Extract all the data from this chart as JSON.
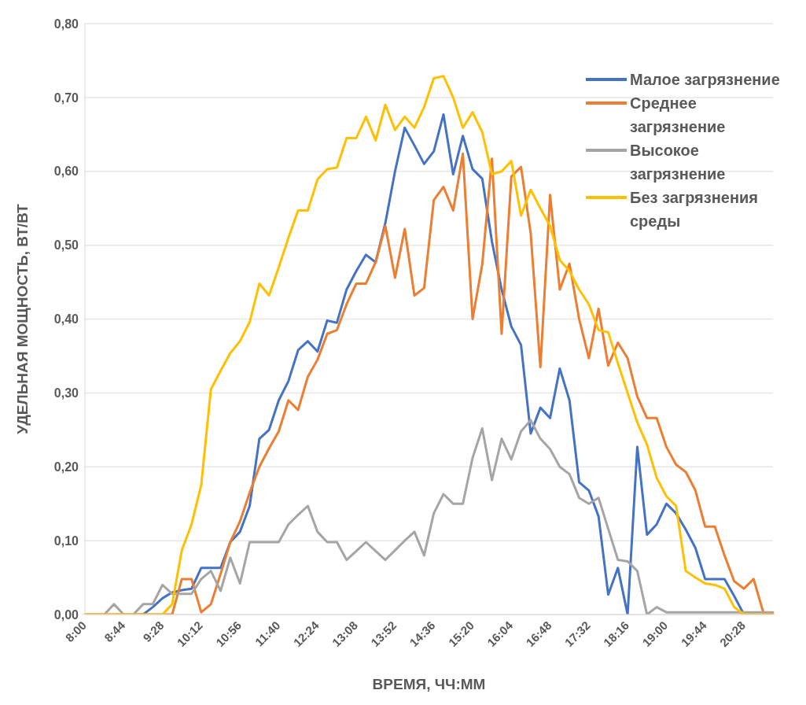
{
  "chart_data": {
    "type": "line",
    "xlabel": "ВРЕМЯ, ЧЧ:ММ",
    "ylabel": "УДЕЛЬНАЯ МОЩНОСТЬ, ВТ/ВТ",
    "categories": [
      "8:00",
      null,
      null,
      null,
      "8:44",
      null,
      null,
      null,
      "9:28",
      null,
      null,
      null,
      "10:12",
      null,
      null,
      null,
      "10:56",
      null,
      null,
      null,
      "11:40",
      null,
      null,
      null,
      "12:24",
      null,
      null,
      null,
      "13:08",
      null,
      null,
      null,
      "13:52",
      null,
      null,
      null,
      "14:36",
      null,
      null,
      null,
      "15:20",
      null,
      null,
      null,
      "16:04",
      null,
      null,
      null,
      "16:48",
      null,
      null,
      null,
      "17:32",
      null,
      null,
      null,
      "18:16",
      null,
      null,
      null,
      "19:00",
      null,
      null,
      null,
      "19:44",
      null,
      null,
      null,
      "20:28",
      null,
      null,
      null
    ],
    "series": [
      {
        "name": "Малое загрязнение",
        "color": "#4472c4",
        "values": [
          null,
          null,
          null,
          null,
          null,
          0,
          0,
          0.01,
          0.022,
          0.03,
          0.033,
          0.035,
          0.063,
          0.063,
          0.063,
          0.098,
          0.112,
          0.147,
          0.238,
          0.25,
          0.29,
          0.316,
          0.358,
          0.37,
          0.356,
          0.398,
          0.395,
          0.44,
          0.465,
          0.487,
          0.477,
          0.53,
          0.6,
          0.659,
          0.635,
          0.61,
          0.627,
          0.677,
          0.596,
          0.648,
          0.603,
          0.59,
          0.505,
          0.44,
          0.39,
          0.365,
          0.245,
          0.28,
          0.266,
          0.333,
          0.29,
          0.179,
          0.168,
          0.133,
          0.027,
          0.063,
          0,
          0.227,
          0.108,
          0.122,
          0.15,
          0.137,
          0.115,
          0.09,
          0.048,
          0.048,
          0.048,
          0.025,
          0,
          0,
          null,
          null
        ]
      },
      {
        "name": "Среднее загрязнение",
        "color": "#ed7d31",
        "values": [
          0,
          0,
          0,
          0,
          0,
          0,
          0,
          0,
          0,
          0,
          0.048,
          0.048,
          0.003,
          0.014,
          0.055,
          0.098,
          0.126,
          0.165,
          0.2,
          0.225,
          0.248,
          0.29,
          0.277,
          0.322,
          0.345,
          0.38,
          0.385,
          0.42,
          0.448,
          0.448,
          0.477,
          0.526,
          0.456,
          0.522,
          0.432,
          0.442,
          0.561,
          0.579,
          0.547,
          0.624,
          0.4,
          0.474,
          0.617,
          0.38,
          0.593,
          0.606,
          0.516,
          0.335,
          0.568,
          0.44,
          0.475,
          0.4,
          0.347,
          0.414,
          0.337,
          0.368,
          0.347,
          0.295,
          0.266,
          0.266,
          0.227,
          0.203,
          0.193,
          0.168,
          0.119,
          0.119,
          0.08,
          0.045,
          0.035,
          0.048,
          0.003,
          0
        ]
      },
      {
        "name": "Высокое загрязнение",
        "color": "#a5a5a5",
        "values": [
          0,
          0,
          0,
          0.014,
          0,
          0,
          0.014,
          0.014,
          0.04,
          0.028,
          0.028,
          0.028,
          0.048,
          0.059,
          0.032,
          0.077,
          0.042,
          0.098,
          0.098,
          0.098,
          0.098,
          0.122,
          0.135,
          0.147,
          0.112,
          0.098,
          0.098,
          0.074,
          0.086,
          0.098,
          0.086,
          0.074,
          0.087,
          0.1,
          0.112,
          0.08,
          0.137,
          0.163,
          0.15,
          0.15,
          0.212,
          0.252,
          0.182,
          0.238,
          0.21,
          0.248,
          0.263,
          0.238,
          0.224,
          0.2,
          0.19,
          0.158,
          0.15,
          0.158,
          0.116,
          0.074,
          0.072,
          0.059,
          0,
          0.01,
          0.003,
          0.003,
          0.003,
          0.003,
          0.003,
          0.003,
          0.003,
          0.003,
          0.003,
          0.003,
          0.003,
          0.003
        ]
      },
      {
        "name": "Без загрязнения среды",
        "color": "#ffc000",
        "values": [
          0,
          0,
          0,
          0,
          0,
          0,
          0,
          0,
          0,
          0.014,
          0.087,
          0.122,
          0.175,
          0.305,
          0.33,
          0.354,
          0.37,
          0.396,
          0.448,
          0.432,
          0.47,
          0.51,
          0.547,
          0.547,
          0.589,
          0.603,
          0.605,
          0.645,
          0.645,
          0.674,
          0.642,
          0.69,
          0.656,
          0.674,
          0.659,
          0.687,
          0.726,
          0.729,
          0.7,
          0.659,
          0.68,
          0.653,
          0.596,
          0.6,
          0.614,
          0.54,
          0.575,
          0.55,
          0.526,
          0.48,
          0.465,
          0.44,
          0.42,
          0.385,
          0.382,
          0.34,
          0.3,
          0.26,
          0.23,
          0.185,
          0.16,
          0.147,
          0.059,
          0.05,
          0.042,
          0.04,
          0.035,
          0.01,
          0,
          0,
          0,
          0
        ]
      }
    ],
    "ylim": [
      0,
      0.8
    ],
    "yticks": [
      {
        "value": 0,
        "label": "0,00"
      },
      {
        "value": 0.1,
        "label": "0,10"
      },
      {
        "value": 0.2,
        "label": "0,20"
      },
      {
        "value": 0.3,
        "label": "0,30"
      },
      {
        "value": 0.4,
        "label": "0,40"
      },
      {
        "value": 0.5,
        "label": "0,50"
      },
      {
        "value": 0.6,
        "label": "0,60"
      },
      {
        "value": 0.7,
        "label": "0,70"
      },
      {
        "value": 0.8,
        "label": "0,80"
      }
    ],
    "grid": "y",
    "legend": "top right",
    "marker": "none",
    "line_style": "solid"
  }
}
